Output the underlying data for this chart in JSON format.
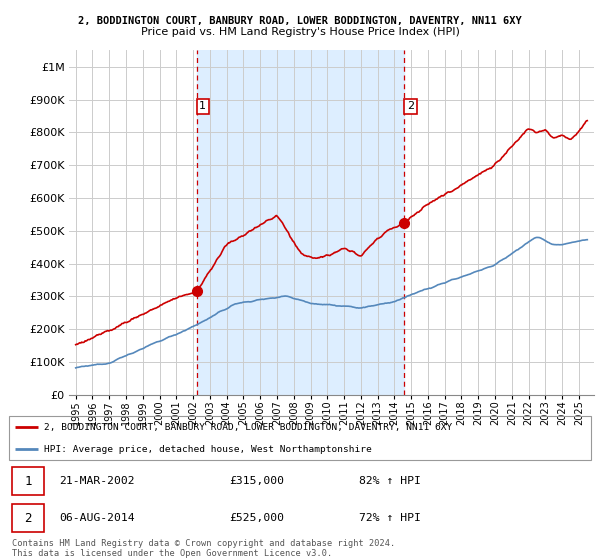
{
  "title": "2, BODDINGTON COURT, BANBURY ROAD, LOWER BODDINGTON, DAVENTRY, NN11 6XY",
  "subtitle": "Price paid vs. HM Land Registry's House Price Index (HPI)",
  "legend_line1": "2, BODDINGTON COURT, BANBURY ROAD, LOWER BODDINGTON, DAVENTRY, NN11 6XY",
  "legend_line2": "HPI: Average price, detached house, West Northamptonshire",
  "footnote": "Contains HM Land Registry data © Crown copyright and database right 2024.\nThis data is licensed under the Open Government Licence v3.0.",
  "transaction1_date": "21-MAR-2002",
  "transaction1_price": "£315,000",
  "transaction1_hpi": "82% ↑ HPI",
  "transaction1_x": 2002.22,
  "transaction1_y": 315000,
  "transaction2_date": "06-AUG-2014",
  "transaction2_price": "£525,000",
  "transaction2_hpi": "72% ↑ HPI",
  "transaction2_x": 2014.6,
  "transaction2_y": 525000,
  "ylim_min": 0,
  "ylim_max": 1050000,
  "yticks": [
    0,
    100000,
    200000,
    300000,
    400000,
    500000,
    600000,
    700000,
    800000,
    900000,
    1000000
  ],
  "ytick_labels": [
    "£0",
    "£100K",
    "£200K",
    "£300K",
    "£400K",
    "£500K",
    "£600K",
    "£700K",
    "£800K",
    "£900K",
    "£1M"
  ],
  "red_color": "#cc0000",
  "blue_color": "#5588bb",
  "shade_color": "#ddeeff",
  "background_color": "#ffffff",
  "grid_color": "#cccccc",
  "vline_color": "#cc0000",
  "box_color": "#cc0000",
  "xlim_min": 1994.6,
  "xlim_max": 2025.9
}
